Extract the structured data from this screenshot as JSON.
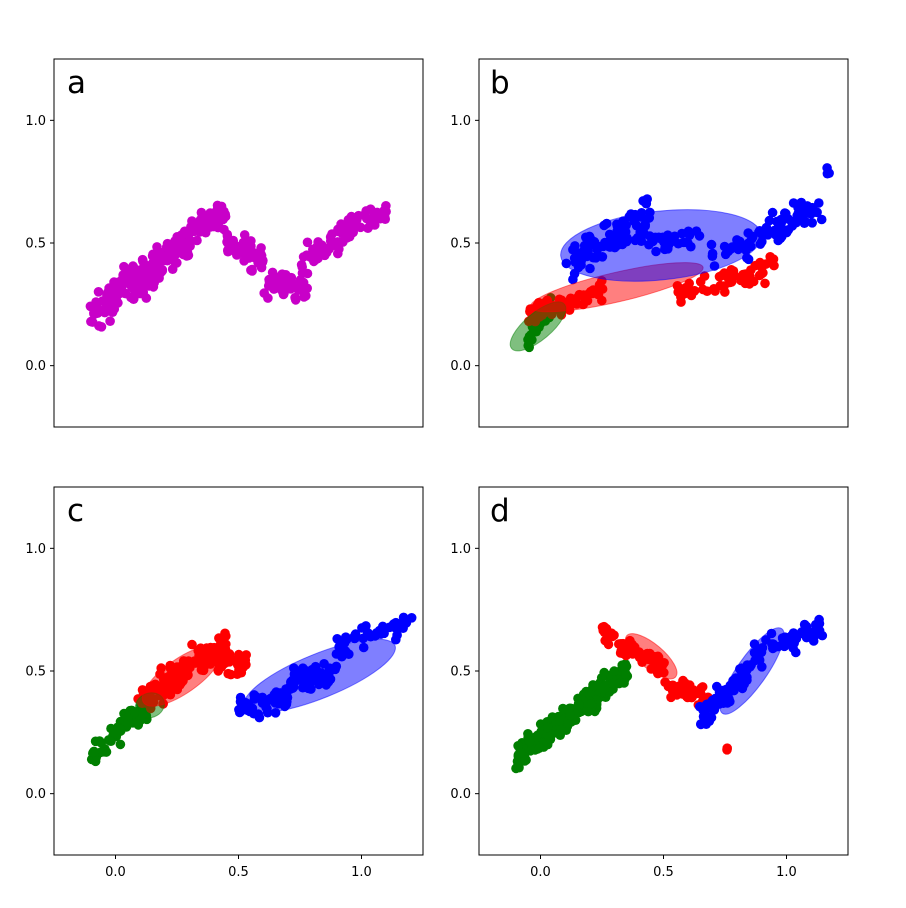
{
  "chart_data": {
    "type": "scatter",
    "xlim": [
      -0.25,
      1.25
    ],
    "ylim": [
      -0.25,
      1.25
    ],
    "x_ticks": [
      "0.0",
      "0.5",
      "1.0"
    ],
    "y_ticks": [
      "0.0",
      "0.5",
      "1.0"
    ],
    "x_tick_values": [
      0.0,
      0.5,
      1.0
    ],
    "y_tick_values": [
      0.0,
      0.5,
      1.0
    ],
    "grid": false,
    "colors": {
      "magenta": "#c800c8",
      "red": "#ff0000",
      "blue": "#0000ff",
      "green": "#007f00"
    },
    "panels": [
      {
        "label": "a",
        "show_x_ticks": false,
        "clusters": [
          {
            "color": "#c800c8",
            "ranges": [
              [
                -0.2,
                0.02,
                0.02
              ],
              [
                -0.1,
                0.0,
                0.2,
                0.28,
                0.1
              ],
              [
                0.0,
                0.18,
                0.3,
                0.4,
                0.12
              ],
              [
                0.15,
                0.3,
                0.4,
                0.5,
                0.12
              ],
              [
                0.3,
                0.45,
                0.55,
                0.62,
                0.1
              ],
              [
                0.45,
                0.6,
                0.5,
                0.42,
                0.1
              ],
              [
                0.6,
                0.78,
                0.35,
                0.32,
                0.1
              ],
              [
                0.75,
                0.95,
                0.4,
                0.55,
                0.1
              ],
              [
                0.9,
                1.1,
                0.55,
                0.63,
                0.09
              ]
            ],
            "n": [
              1,
              45,
              70,
              80,
              55,
              50,
              45,
              45,
              35
            ]
          }
        ],
        "ellipses": []
      },
      {
        "label": "b",
        "show_x_ticks": false,
        "clusters": [
          {
            "color": "#007f00",
            "ranges": [
              [
                -0.2,
                0.02,
                0.02
              ],
              [
                -0.05,
                0.05,
                0.12,
                0.25,
                0.1
              ]
            ],
            "n": [
              1,
              30
            ]
          },
          {
            "color": "#ff0000",
            "ranges": [
              [
                -0.05,
                0.25,
                0.2,
                0.3,
                0.07
              ],
              [
                0.55,
                0.95,
                0.3,
                0.4,
                0.08
              ]
            ],
            "n": [
              60,
              55
            ]
          },
          {
            "color": "#0000ff",
            "ranges": [
              [
                0.1,
                0.45,
                0.4,
                0.62,
                0.12
              ],
              [
                0.4,
                0.65,
                0.52,
                0.5,
                0.09
              ],
              [
                0.7,
                1.15,
                0.45,
                0.65,
                0.1
              ],
              [
                1.15,
                1.2,
                0.78,
                0.79,
                0.03
              ]
            ],
            "n": [
              90,
              35,
              80,
              3
            ]
          }
        ],
        "ellipses": [
          {
            "cx": -0.01,
            "cy": 0.16,
            "rx": 0.14,
            "ry": 0.055,
            "angle": 40,
            "color": "#007f00"
          },
          {
            "cx": 0.31,
            "cy": 0.32,
            "rx": 0.36,
            "ry": 0.06,
            "angle": 13,
            "color": "#ff0000"
          },
          {
            "cx": 0.49,
            "cy": 0.49,
            "rx": 0.41,
            "ry": 0.14,
            "angle": 6,
            "color": "#0000ff"
          }
        ]
      },
      {
        "label": "c",
        "show_x_ticks": true,
        "clusters": [
          {
            "color": "#007f00",
            "ranges": [
              [
                -0.2,
                0.02,
                0.02
              ],
              [
                -0.1,
                0.15,
                0.15,
                0.38,
                0.08
              ]
            ],
            "n": [
              1,
              80
            ]
          },
          {
            "color": "#ff0000",
            "ranges": [
              [
                0.1,
                0.3,
                0.38,
                0.5,
                0.1
              ],
              [
                0.25,
                0.45,
                0.5,
                0.6,
                0.1
              ],
              [
                0.4,
                0.55,
                0.55,
                0.52,
                0.08
              ]
            ],
            "n": [
              70,
              70,
              35
            ]
          },
          {
            "color": "#0000ff",
            "ranges": [
              [
                0.5,
                0.7,
                0.35,
                0.38,
                0.08
              ],
              [
                0.7,
                0.9,
                0.45,
                0.5,
                0.09
              ],
              [
                0.9,
                1.2,
                0.6,
                0.7,
                0.08
              ]
            ],
            "n": [
              55,
              65,
              45
            ]
          }
        ],
        "ellipses": [
          {
            "cx": 0.14,
            "cy": 0.36,
            "rx": 0.06,
            "ry": 0.05,
            "angle": 20,
            "color": "#007f00"
          },
          {
            "cx": 0.27,
            "cy": 0.48,
            "rx": 0.19,
            "ry": 0.07,
            "angle": 35,
            "color": "#ff0000"
          },
          {
            "cx": 0.83,
            "cy": 0.48,
            "rx": 0.33,
            "ry": 0.09,
            "angle": 22,
            "color": "#0000ff"
          }
        ]
      },
      {
        "label": "d",
        "show_x_ticks": true,
        "clusters": [
          {
            "color": "#007f00",
            "ranges": [
              [
                -0.2,
                0.02,
                0.02
              ],
              [
                -0.1,
                0.35,
                0.15,
                0.5,
                0.09
              ]
            ],
            "n": [
              1,
              230
            ]
          },
          {
            "color": "#ff0000",
            "ranges": [
              [
                0.25,
                0.5,
                0.65,
                0.52,
                0.08
              ],
              [
                0.5,
                0.7,
                0.45,
                0.38,
                0.07
              ],
              [
                0.75,
                0.78,
                0.15,
                0.22,
                0.05
              ]
            ],
            "n": [
              70,
              55,
              2
            ]
          },
          {
            "color": "#0000ff",
            "ranges": [
              [
                0.65,
                0.85,
                0.3,
                0.5,
                0.08
              ],
              [
                0.85,
                1.15,
                0.55,
                0.68,
                0.08
              ]
            ],
            "n": [
              70,
              55
            ]
          }
        ],
        "ellipses": [
          {
            "cx": 0.45,
            "cy": 0.56,
            "rx": 0.13,
            "ry": 0.05,
            "angle": -40,
            "color": "#ff0000"
          },
          {
            "cx": 0.86,
            "cy": 0.5,
            "rx": 0.21,
            "ry": 0.06,
            "angle": 55,
            "color": "#0000ff"
          }
        ]
      }
    ]
  }
}
